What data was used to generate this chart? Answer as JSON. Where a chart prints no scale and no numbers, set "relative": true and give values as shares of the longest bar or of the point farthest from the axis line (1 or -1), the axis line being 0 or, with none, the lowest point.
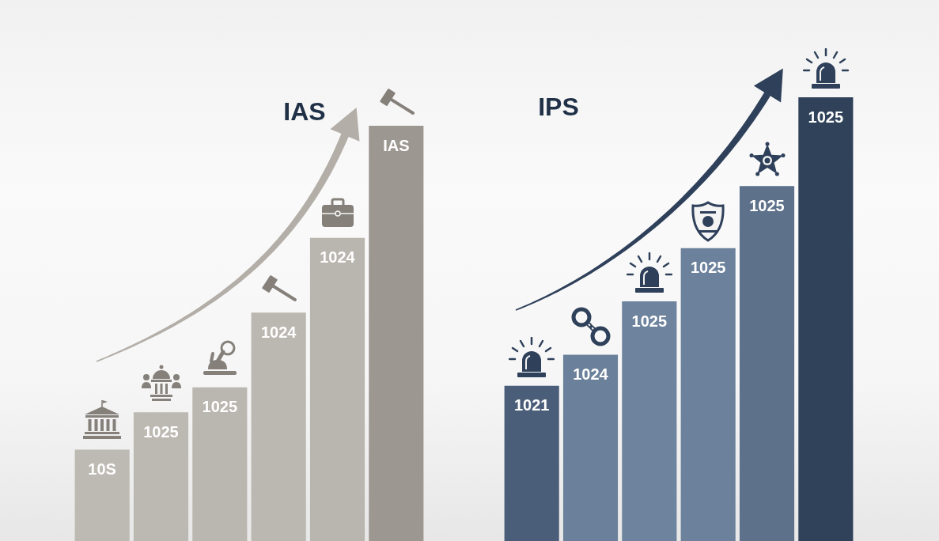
{
  "chart_data": [
    {
      "type": "bar",
      "title": "IAS",
      "categories": [
        "10S",
        "1025",
        "1025",
        "1024",
        "1024",
        "IAS"
      ],
      "values": [
        0.22,
        0.31,
        0.37,
        0.55,
        0.73,
        1
      ],
      "colors": [
        "#bdb9b3",
        "#bcb8b2",
        "#bab6b0",
        "#bbb7b1",
        "#b9b5af",
        "#9c9791"
      ],
      "relative": true
    },
    {
      "type": "bar",
      "title": "IPS",
      "categories": [
        "1021",
        "1024",
        "1025",
        "1025",
        "1025",
        "1025"
      ],
      "values": [
        0.35,
        0.42,
        0.54,
        0.66,
        0.8,
        1
      ],
      "colors": [
        "#4b5e79",
        "#6b809a",
        "#6e839d",
        "#6c819b",
        "#5d718b",
        "#30425a"
      ],
      "relative": true
    }
  ]
}
